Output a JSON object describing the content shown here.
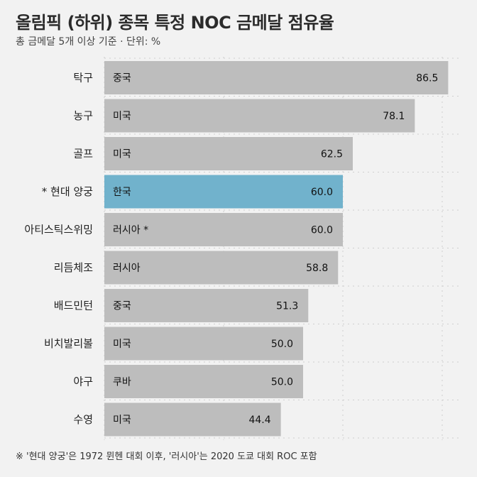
{
  "title": "올림픽 (하위) 종목 특정 NOC 금메달 점유율",
  "subtitle": "총 금메달 5개 이상 기준 · 단위: %",
  "footnote": "※ '현대 양궁'은 1972 뮌헨 대회 이후, '러시아'는 2020 도쿄 대회 ROC 포함",
  "colors": {
    "bar": "#bdbdbd",
    "highlight": "#71b2cc",
    "grid": "#cfcfcf",
    "background": "#f2f2f2"
  },
  "chart_data": {
    "type": "bar",
    "orientation": "horizontal",
    "title": "올림픽 (하위) 종목 특정 NOC 금메달 점유율",
    "subtitle": "총 금메달 5개 이상 기준 · 단위: %",
    "categories": [
      "탁구",
      "농구",
      "골프",
      "* 현대 양궁",
      "아티스틱스위밍",
      "리듬체조",
      "배드민턴",
      "비치발리볼",
      "야구",
      "수영"
    ],
    "noc_labels": [
      "중국",
      "미국",
      "미국",
      "한국",
      "러시아 *",
      "러시아",
      "중국",
      "미국",
      "쿠바",
      "미국"
    ],
    "values": [
      86.5,
      78.1,
      62.5,
      60.0,
      60.0,
      58.8,
      51.3,
      50.0,
      50.0,
      44.4
    ],
    "value_labels": [
      "86.5",
      "78.1",
      "62.5",
      "60.0",
      "60.0",
      "58.8",
      "51.3",
      "50.0",
      "50.0",
      "44.4"
    ],
    "highlight_category": "* 현대 양궁",
    "xlim": [
      0,
      90
    ],
    "grid": true,
    "xlabel": "",
    "ylabel": ""
  }
}
